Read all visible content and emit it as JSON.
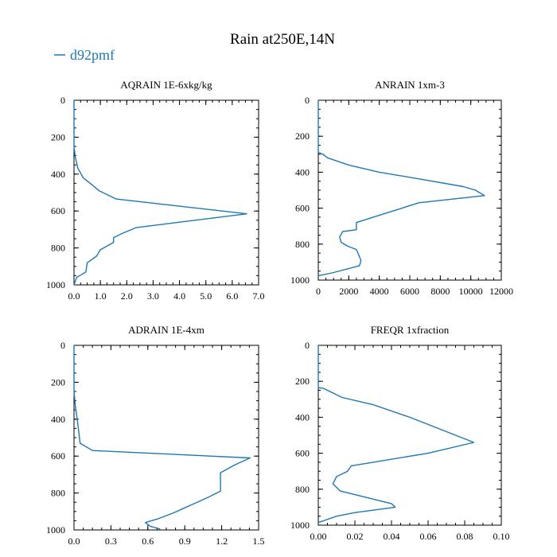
{
  "title": "Rain at250E,14N",
  "legend": {
    "label": "d92pmf",
    "color": "#1f77b4"
  },
  "chart_data": [
    {
      "type": "line",
      "title": "AQRAIN  1E-6xkg/kg",
      "xlim": [
        0,
        7
      ],
      "ylim": [
        0,
        1000
      ],
      "y_inverted": true,
      "xticks": [
        0,
        1,
        2,
        3,
        4,
        5,
        6,
        7
      ],
      "xtick_labels": [
        "0.0",
        "1.0",
        "2.0",
        "3.0",
        "4.0",
        "5.0",
        "6.0",
        "7.0"
      ],
      "yticks": [
        0,
        200,
        400,
        600,
        800,
        1000
      ],
      "ytick_labels": [
        "0",
        "200",
        "400",
        "600",
        "800",
        "1000"
      ],
      "series": [
        {
          "name": "d92pmf",
          "x": [
            0,
            0,
            0.05,
            0.15,
            0.35,
            0.7,
            0.95,
            1.6,
            6.55,
            2.35,
            1.85,
            1.5,
            1.5,
            1.0,
            0.85,
            0.5,
            0.45,
            0.1,
            0
          ],
          "y": [
            0,
            250,
            310,
            370,
            420,
            460,
            490,
            535,
            615,
            690,
            720,
            745,
            770,
            810,
            845,
            880,
            930,
            960,
            1000
          ]
        }
      ]
    },
    {
      "type": "line",
      "title": "ANRAIN  1xm-3",
      "xlim": [
        0,
        12000
      ],
      "ylim": [
        0,
        1000
      ],
      "y_inverted": true,
      "xticks": [
        0,
        2000,
        4000,
        6000,
        8000,
        10000,
        12000
      ],
      "xtick_labels": [
        "0",
        "2000",
        "4000",
        "6000",
        "8000",
        "10000",
        "12000"
      ],
      "yticks": [
        0,
        200,
        400,
        600,
        800,
        1000
      ],
      "ytick_labels": [
        "0",
        "200",
        "400",
        "600",
        "800",
        "1000"
      ],
      "series": [
        {
          "name": "d92pmf",
          "x": [
            0,
            0,
            300,
            600,
            2000,
            4000,
            6800,
            9500,
            10300,
            10900,
            6600,
            5100,
            3600,
            2500,
            2500,
            1600,
            1400,
            1500,
            1900,
            2500,
            2800,
            2700,
            900,
            0
          ],
          "y": [
            0,
            290,
            300,
            320,
            360,
            400,
            440,
            480,
            500,
            530,
            570,
            610,
            650,
            680,
            720,
            730,
            760,
            790,
            810,
            830,
            890,
            920,
            960,
            975
          ]
        }
      ]
    },
    {
      "type": "line",
      "title": "ADRAIN  1E-4xm",
      "xlim": [
        0,
        1.5
      ],
      "ylim": [
        0,
        1000
      ],
      "y_inverted": true,
      "xticks": [
        0,
        0.3,
        0.6,
        0.9,
        1.2,
        1.5
      ],
      "xtick_labels": [
        "0.0",
        "0.3",
        "0.6",
        "0.9",
        "1.2",
        "1.5"
      ],
      "yticks": [
        0,
        200,
        400,
        600,
        800,
        1000
      ],
      "ytick_labels": [
        "0",
        "200",
        "400",
        "600",
        "800",
        "1000"
      ],
      "series": [
        {
          "name": "d92pmf",
          "x": [
            0,
            0,
            0.01,
            0.03,
            0.05,
            0.15,
            1.43,
            1.3,
            1.19,
            1.19,
            1.19,
            1.1,
            1.0,
            0.9,
            0.8,
            0.68,
            0.58,
            0.62,
            0.7
          ],
          "y": [
            0,
            250,
            320,
            420,
            530,
            570,
            610,
            650,
            690,
            730,
            790,
            820,
            850,
            880,
            910,
            940,
            960,
            980,
            995
          ]
        }
      ]
    },
    {
      "type": "line",
      "title": "FREQR  1xfraction",
      "xlim": [
        0,
        0.1
      ],
      "ylim": [
        0,
        1000
      ],
      "y_inverted": true,
      "xticks": [
        0,
        0.02,
        0.04,
        0.06,
        0.08,
        0.1
      ],
      "xtick_labels": [
        "0.00",
        "0.02",
        "0.04",
        "0.06",
        "0.08",
        "0.10"
      ],
      "yticks": [
        0,
        200,
        400,
        600,
        800,
        1000
      ],
      "ytick_labels": [
        "0",
        "200",
        "400",
        "600",
        "800",
        "1000"
      ],
      "series": [
        {
          "name": "d92pmf",
          "x": [
            0,
            0,
            0.003,
            0.007,
            0.013,
            0.03,
            0.05,
            0.085,
            0.06,
            0.03,
            0.018,
            0.016,
            0.01,
            0.008,
            0.009,
            0.012,
            0.04,
            0.042,
            0.02,
            0.01,
            0.003,
            0
          ],
          "y": [
            0,
            235,
            240,
            260,
            290,
            330,
            400,
            540,
            600,
            650,
            670,
            700,
            730,
            770,
            780,
            810,
            880,
            900,
            930,
            950,
            975,
            985
          ]
        }
      ]
    }
  ]
}
